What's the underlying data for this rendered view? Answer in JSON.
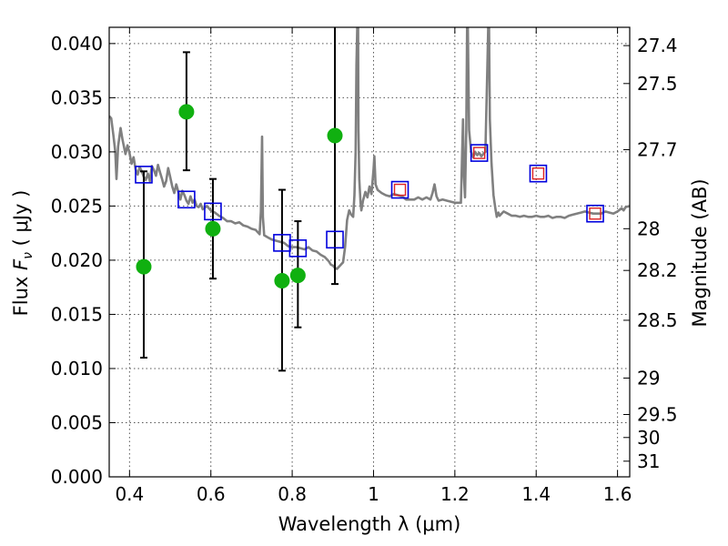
{
  "chart_data": {
    "type": "scatter",
    "xlabel": "Wavelength  λ (μm)",
    "ylabel_prefix": "Flux  ",
    "ylabel_symbol": "F",
    "ylabel_subscript": "ν",
    "ylabel_suffix": "  ( μJy )",
    "y2label": "Magnitude (AB)",
    "xlim": [
      0.35,
      1.63
    ],
    "ylim": [
      0.0,
      0.0415
    ],
    "grid": true,
    "x_ticks": [
      {
        "value": 0.4,
        "label": "0.4"
      },
      {
        "value": 0.6,
        "label": "0.6"
      },
      {
        "value": 0.8,
        "label": "0.8"
      },
      {
        "value": 1.0,
        "label": "1"
      },
      {
        "value": 1.2,
        "label": "1.2"
      },
      {
        "value": 1.4,
        "label": "1.4"
      },
      {
        "value": 1.6,
        "label": "1.6"
      }
    ],
    "y_ticks": [
      {
        "value": 0.0,
        "label": "0.000"
      },
      {
        "value": 0.005,
        "label": "0.005"
      },
      {
        "value": 0.01,
        "label": "0.010"
      },
      {
        "value": 0.015,
        "label": "0.015"
      },
      {
        "value": 0.02,
        "label": "0.020"
      },
      {
        "value": 0.025,
        "label": "0.025"
      },
      {
        "value": 0.03,
        "label": "0.030"
      },
      {
        "value": 0.035,
        "label": "0.035"
      },
      {
        "value": 0.04,
        "label": "0.040"
      }
    ],
    "mag_ticks": [
      {
        "mag": 27.4,
        "label": "27.4"
      },
      {
        "mag": 27.5,
        "label": "27.5"
      },
      {
        "mag": 27.7,
        "label": "27.7"
      },
      {
        "mag": 28.0,
        "label": "28"
      },
      {
        "mag": 28.2,
        "label": "28.2"
      },
      {
        "mag": 28.5,
        "label": "28.5"
      },
      {
        "mag": 29.0,
        "label": "29"
      },
      {
        "mag": 29.5,
        "label": "29.5"
      },
      {
        "mag": 30.0,
        "label": "30"
      },
      {
        "mag": 31.0,
        "label": "31"
      }
    ],
    "series": [
      {
        "kind": "model-spectrum",
        "color": "#808080",
        "points": [
          [
            0.35,
            0.0333
          ],
          [
            0.355,
            0.0331
          ],
          [
            0.36,
            0.0316
          ],
          [
            0.365,
            0.03
          ],
          [
            0.368,
            0.0275
          ],
          [
            0.372,
            0.0305
          ],
          [
            0.378,
            0.0322
          ],
          [
            0.383,
            0.0311
          ],
          [
            0.39,
            0.0298
          ],
          [
            0.395,
            0.0306
          ],
          [
            0.4,
            0.0299
          ],
          [
            0.405,
            0.0289
          ],
          [
            0.41,
            0.0295
          ],
          [
            0.415,
            0.0284
          ],
          [
            0.42,
            0.0279
          ],
          [
            0.425,
            0.0286
          ],
          [
            0.43,
            0.0282
          ],
          [
            0.435,
            0.0277
          ],
          [
            0.44,
            0.0274
          ],
          [
            0.445,
            0.028
          ],
          [
            0.45,
            0.0273
          ],
          [
            0.455,
            0.0287
          ],
          [
            0.46,
            0.0283
          ],
          [
            0.465,
            0.0278
          ],
          [
            0.47,
            0.0288
          ],
          [
            0.475,
            0.0281
          ],
          [
            0.48,
            0.0275
          ],
          [
            0.485,
            0.0268
          ],
          [
            0.49,
            0.0273
          ],
          [
            0.495,
            0.0285
          ],
          [
            0.5,
            0.0277
          ],
          [
            0.505,
            0.0268
          ],
          [
            0.51,
            0.0262
          ],
          [
            0.515,
            0.027
          ],
          [
            0.52,
            0.0263
          ],
          [
            0.525,
            0.0256
          ],
          [
            0.53,
            0.0264
          ],
          [
            0.535,
            0.026
          ],
          [
            0.54,
            0.0255
          ],
          [
            0.545,
            0.0252
          ],
          [
            0.55,
            0.0259
          ],
          [
            0.555,
            0.0253
          ],
          [
            0.56,
            0.0256
          ],
          [
            0.565,
            0.025
          ],
          [
            0.57,
            0.0249
          ],
          [
            0.575,
            0.0252
          ],
          [
            0.58,
            0.0247
          ],
          [
            0.59,
            0.025
          ],
          [
            0.6,
            0.0246
          ],
          [
            0.61,
            0.0244
          ],
          [
            0.62,
            0.0241
          ],
          [
            0.63,
            0.0239
          ],
          [
            0.64,
            0.0236
          ],
          [
            0.65,
            0.0236
          ],
          [
            0.66,
            0.0234
          ],
          [
            0.67,
            0.0235
          ],
          [
            0.68,
            0.0232
          ],
          [
            0.69,
            0.0231
          ],
          [
            0.7,
            0.0229
          ],
          [
            0.71,
            0.0228
          ],
          [
            0.715,
            0.0226
          ],
          [
            0.72,
            0.0224
          ],
          [
            0.723,
            0.0245
          ],
          [
            0.726,
            0.0314
          ],
          [
            0.728,
            0.024
          ],
          [
            0.731,
            0.0223
          ],
          [
            0.74,
            0.0221
          ],
          [
            0.75,
            0.0219
          ],
          [
            0.76,
            0.0218
          ],
          [
            0.77,
            0.0217
          ],
          [
            0.78,
            0.0216
          ],
          [
            0.79,
            0.0213
          ],
          [
            0.8,
            0.0212
          ],
          [
            0.81,
            0.0212
          ],
          [
            0.82,
            0.0211
          ],
          [
            0.83,
            0.021
          ],
          [
            0.84,
            0.0212
          ],
          [
            0.85,
            0.0209
          ],
          [
            0.86,
            0.0208
          ],
          [
            0.87,
            0.0205
          ],
          [
            0.88,
            0.0203
          ],
          [
            0.89,
            0.0199
          ],
          [
            0.895,
            0.0196
          ],
          [
            0.9,
            0.0195
          ],
          [
            0.905,
            0.0193
          ],
          [
            0.91,
            0.0192
          ],
          [
            0.915,
            0.0194
          ],
          [
            0.92,
            0.0196
          ],
          [
            0.925,
            0.0198
          ],
          [
            0.93,
            0.0212
          ],
          [
            0.935,
            0.0237
          ],
          [
            0.94,
            0.0246
          ],
          [
            0.945,
            0.0242
          ],
          [
            0.95,
            0.024
          ],
          [
            0.953,
            0.026
          ],
          [
            0.956,
            0.03
          ],
          [
            0.958,
            0.038
          ],
          [
            0.96,
            0.0415
          ],
          [
            0.962,
            0.0415
          ],
          [
            0.963,
            0.032
          ],
          [
            0.965,
            0.0275
          ],
          [
            0.968,
            0.0253
          ],
          [
            0.97,
            0.0246
          ],
          [
            0.974,
            0.0255
          ],
          [
            0.98,
            0.0263
          ],
          [
            0.985,
            0.0258
          ],
          [
            0.99,
            0.0268
          ],
          [
            0.995,
            0.0261
          ],
          [
            1.0,
            0.0284
          ],
          [
            1.002,
            0.0296
          ],
          [
            1.005,
            0.027
          ],
          [
            1.01,
            0.0265
          ],
          [
            1.02,
            0.0262
          ],
          [
            1.03,
            0.026
          ],
          [
            1.04,
            0.0259
          ],
          [
            1.05,
            0.0261
          ],
          [
            1.06,
            0.026
          ],
          [
            1.07,
            0.0259
          ],
          [
            1.08,
            0.0256
          ],
          [
            1.09,
            0.0256
          ],
          [
            1.1,
            0.0256
          ],
          [
            1.11,
            0.0258
          ],
          [
            1.12,
            0.0256
          ],
          [
            1.13,
            0.0258
          ],
          [
            1.14,
            0.0256
          ],
          [
            1.145,
            0.0262
          ],
          [
            1.15,
            0.027
          ],
          [
            1.155,
            0.0259
          ],
          [
            1.16,
            0.0255
          ],
          [
            1.17,
            0.0256
          ],
          [
            1.18,
            0.0255
          ],
          [
            1.19,
            0.0254
          ],
          [
            1.2,
            0.0253
          ],
          [
            1.21,
            0.0253
          ],
          [
            1.215,
            0.0253
          ],
          [
            1.218,
            0.03
          ],
          [
            1.22,
            0.033
          ],
          [
            1.222,
            0.028
          ],
          [
            1.225,
            0.0258
          ],
          [
            1.228,
            0.032
          ],
          [
            1.23,
            0.0415
          ],
          [
            1.232,
            0.0415
          ],
          [
            1.235,
            0.032
          ],
          [
            1.24,
            0.03
          ],
          [
            1.245,
            0.0295
          ],
          [
            1.25,
            0.03
          ],
          [
            1.255,
            0.0297
          ],
          [
            1.26,
            0.0299
          ],
          [
            1.265,
            0.0296
          ],
          [
            1.27,
            0.0298
          ],
          [
            1.275,
            0.03
          ],
          [
            1.28,
            0.038
          ],
          [
            1.282,
            0.0415
          ],
          [
            1.284,
            0.0415
          ],
          [
            1.286,
            0.033
          ],
          [
            1.29,
            0.029
          ],
          [
            1.295,
            0.026
          ],
          [
            1.3,
            0.0247
          ],
          [
            1.303,
            0.024
          ],
          [
            1.307,
            0.0244
          ],
          [
            1.31,
            0.0241
          ],
          [
            1.32,
            0.0245
          ],
          [
            1.33,
            0.0243
          ],
          [
            1.34,
            0.0241
          ],
          [
            1.35,
            0.0241
          ],
          [
            1.36,
            0.024
          ],
          [
            1.37,
            0.0241
          ],
          [
            1.38,
            0.024
          ],
          [
            1.39,
            0.024
          ],
          [
            1.4,
            0.0241
          ],
          [
            1.41,
            0.024
          ],
          [
            1.42,
            0.024
          ],
          [
            1.43,
            0.0241
          ],
          [
            1.44,
            0.0239
          ],
          [
            1.45,
            0.024
          ],
          [
            1.46,
            0.024
          ],
          [
            1.47,
            0.0239
          ],
          [
            1.48,
            0.0241
          ],
          [
            1.49,
            0.0242
          ],
          [
            1.5,
            0.0243
          ],
          [
            1.51,
            0.0244
          ],
          [
            1.52,
            0.0245
          ],
          [
            1.53,
            0.0244
          ],
          [
            1.54,
            0.0243
          ],
          [
            1.55,
            0.0243
          ],
          [
            1.56,
            0.0243
          ],
          [
            1.57,
            0.0245
          ],
          [
            1.58,
            0.0244
          ],
          [
            1.59,
            0.0243
          ],
          [
            1.6,
            0.0245
          ],
          [
            1.61,
            0.0248
          ],
          [
            1.615,
            0.0246
          ],
          [
            1.62,
            0.0249
          ],
          [
            1.63,
            0.025
          ]
        ]
      },
      {
        "kind": "observed-flux",
        "marker": "filled-circle",
        "color": "#10b010",
        "points": [
          {
            "x": 0.435,
            "y": 0.0194,
            "err_low": 0.011,
            "err_high": 0.0282
          },
          {
            "x": 0.54,
            "y": 0.0337,
            "err_low": 0.0283,
            "err_high": 0.0392
          },
          {
            "x": 0.605,
            "y": 0.0229,
            "err_low": 0.0183,
            "err_high": 0.0275
          },
          {
            "x": 0.775,
            "y": 0.0181,
            "err_low": 0.0098,
            "err_high": 0.0265
          },
          {
            "x": 0.814,
            "y": 0.0186,
            "err_low": 0.0138,
            "err_high": 0.0236
          },
          {
            "x": 0.905,
            "y": 0.0315,
            "err_low": 0.0178,
            "err_high": 0.0415
          }
        ]
      },
      {
        "kind": "model-bandpass-flux",
        "marker": "open-square",
        "color": "#0000dd",
        "points": [
          {
            "x": 0.435,
            "y": 0.0279
          },
          {
            "x": 0.54,
            "y": 0.0256
          },
          {
            "x": 0.605,
            "y": 0.0245
          },
          {
            "x": 0.775,
            "y": 0.0216
          },
          {
            "x": 0.814,
            "y": 0.0211
          },
          {
            "x": 0.905,
            "y": 0.0219
          },
          {
            "x": 1.065,
            "y": 0.0265
          },
          {
            "x": 1.26,
            "y": 0.0299
          },
          {
            "x": 1.405,
            "y": 0.028
          },
          {
            "x": 1.545,
            "y": 0.0243
          }
        ]
      },
      {
        "kind": "model-bandpass-flux-inner",
        "marker": "small-open-square",
        "color": "#dd2222",
        "points": [
          {
            "x": 1.065,
            "y": 0.0265
          },
          {
            "x": 1.26,
            "y": 0.0299
          },
          {
            "x": 1.405,
            "y": 0.028
          },
          {
            "x": 1.545,
            "y": 0.0243
          }
        ]
      }
    ]
  }
}
